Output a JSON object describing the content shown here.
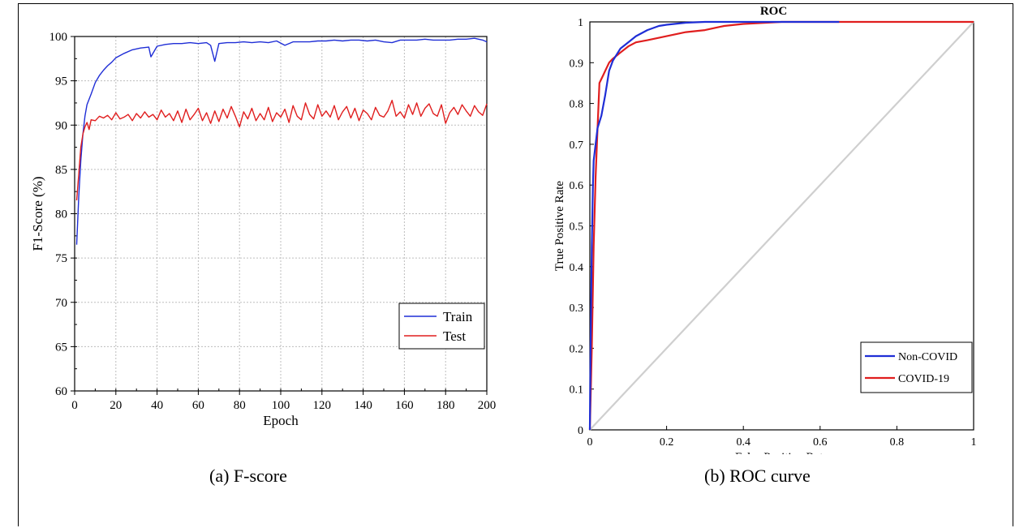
{
  "captions": {
    "a": "(a) F-score",
    "b": "(b) ROC curve"
  },
  "colors": {
    "train": "#1f2ed6",
    "test": "#e01e1e",
    "noncovid": "#1f2ed6",
    "covid": "#e01e1e",
    "diagonal": "#cfcfcf",
    "grid": "#bdbdbd"
  },
  "chart_data": [
    {
      "type": "line",
      "title": "",
      "xlabel": "Epoch",
      "ylabel": "F1-Score (%)",
      "xlim": [
        0,
        200
      ],
      "ylim": [
        60,
        100
      ],
      "xticks": [
        0,
        20,
        40,
        60,
        80,
        100,
        120,
        140,
        160,
        180,
        200
      ],
      "yticks": [
        60,
        65,
        70,
        75,
        80,
        85,
        90,
        95,
        100
      ],
      "grid": true,
      "legend_position": "bottom-right",
      "series": [
        {
          "name": "Train",
          "x": [
            1,
            2,
            3,
            4,
            5,
            6,
            8,
            10,
            12,
            14,
            16,
            18,
            20,
            24,
            28,
            32,
            36,
            37,
            40,
            44,
            48,
            52,
            56,
            60,
            64,
            66,
            68,
            70,
            74,
            78,
            82,
            86,
            90,
            94,
            98,
            102,
            106,
            110,
            114,
            118,
            122,
            126,
            130,
            134,
            138,
            142,
            146,
            150,
            154,
            158,
            162,
            166,
            170,
            174,
            178,
            182,
            186,
            190,
            194,
            198,
            200
          ],
          "y": [
            76.5,
            82.0,
            86.0,
            89.0,
            91.0,
            92.3,
            93.5,
            94.8,
            95.6,
            96.2,
            96.7,
            97.1,
            97.6,
            98.1,
            98.5,
            98.7,
            98.8,
            97.7,
            98.9,
            99.1,
            99.2,
            99.2,
            99.3,
            99.2,
            99.3,
            99.0,
            97.2,
            99.2,
            99.3,
            99.3,
            99.4,
            99.3,
            99.4,
            99.3,
            99.5,
            99.0,
            99.4,
            99.4,
            99.4,
            99.5,
            99.5,
            99.6,
            99.5,
            99.6,
            99.6,
            99.5,
            99.6,
            99.4,
            99.3,
            99.6,
            99.6,
            99.6,
            99.7,
            99.6,
            99.6,
            99.6,
            99.7,
            99.7,
            99.8,
            99.6,
            99.4
          ]
        },
        {
          "name": "Test",
          "x": [
            1,
            2,
            3,
            4,
            5,
            6,
            7,
            8,
            10,
            12,
            14,
            16,
            18,
            20,
            22,
            24,
            26,
            28,
            30,
            32,
            34,
            36,
            38,
            40,
            42,
            44,
            46,
            48,
            50,
            52,
            54,
            56,
            58,
            60,
            62,
            64,
            66,
            68,
            70,
            72,
            74,
            76,
            78,
            80,
            82,
            84,
            86,
            88,
            90,
            92,
            94,
            96,
            98,
            100,
            102,
            104,
            106,
            108,
            110,
            112,
            114,
            116,
            118,
            120,
            122,
            124,
            126,
            128,
            130,
            132,
            134,
            136,
            138,
            140,
            142,
            144,
            146,
            148,
            150,
            152,
            154,
            156,
            158,
            160,
            162,
            164,
            166,
            168,
            170,
            172,
            174,
            176,
            178,
            180,
            182,
            184,
            186,
            188,
            190,
            192,
            194,
            196,
            198,
            200
          ],
          "y": [
            81.5,
            84.5,
            87.5,
            89.0,
            89.8,
            90.3,
            89.5,
            90.6,
            90.5,
            91.0,
            90.8,
            91.1,
            90.6,
            91.4,
            90.7,
            90.9,
            91.2,
            90.5,
            91.3,
            90.8,
            91.5,
            90.9,
            91.2,
            90.6,
            91.7,
            90.9,
            91.3,
            90.5,
            91.6,
            90.3,
            91.8,
            90.6,
            91.2,
            91.9,
            90.5,
            91.4,
            90.2,
            91.6,
            90.4,
            91.8,
            90.8,
            92.1,
            91.0,
            89.8,
            91.5,
            90.7,
            91.9,
            90.5,
            91.3,
            90.6,
            92.0,
            90.4,
            91.4,
            90.9,
            91.8,
            90.3,
            92.2,
            91.0,
            90.6,
            92.5,
            91.2,
            90.7,
            92.3,
            91.0,
            91.6,
            90.9,
            92.2,
            90.6,
            91.5,
            92.1,
            90.8,
            91.9,
            90.5,
            91.7,
            91.3,
            90.6,
            92.0,
            91.1,
            90.9,
            91.6,
            92.8,
            91.0,
            91.5,
            90.8,
            92.3,
            91.2,
            92.5,
            91.0,
            91.9,
            92.4,
            91.3,
            91.0,
            92.3,
            90.2,
            91.4,
            92.0,
            91.2,
            92.3,
            91.6,
            91.0,
            92.2,
            91.5,
            91.1,
            92.4
          ]
        }
      ]
    },
    {
      "type": "line",
      "title": "ROC",
      "xlabel": "False Positive Rate",
      "ylabel": "True Positive Rate",
      "xlim": [
        0,
        1
      ],
      "ylim": [
        0,
        1
      ],
      "xticks": [
        "0",
        "0.2",
        "0.4",
        "0.6",
        "0.8",
        "1"
      ],
      "yticks": [
        "0",
        "0.1",
        "0.2",
        "0.3",
        "0.4",
        "0.5",
        "0.6",
        "0.7",
        "0.8",
        "0.9",
        "1"
      ],
      "grid": false,
      "legend_position": "bottom-right",
      "series": [
        {
          "name": "Non-COVID",
          "x": [
            0,
            0.002,
            0.005,
            0.008,
            0.01,
            0.015,
            0.02,
            0.03,
            0.04,
            0.05,
            0.06,
            0.07,
            0.08,
            0.1,
            0.12,
            0.15,
            0.18,
            0.2,
            0.25,
            0.3,
            0.4,
            0.5,
            0.65
          ],
          "y": [
            0,
            0.2,
            0.45,
            0.6,
            0.66,
            0.7,
            0.74,
            0.77,
            0.82,
            0.88,
            0.905,
            0.92,
            0.935,
            0.95,
            0.965,
            0.98,
            0.99,
            0.993,
            0.998,
            1.0,
            1.0,
            1.0,
            1.0
          ]
        },
        {
          "name": "COVID-19",
          "x": [
            0,
            0.005,
            0.01,
            0.015,
            0.02,
            0.025,
            0.03,
            0.035,
            0.04,
            0.05,
            0.06,
            0.08,
            0.1,
            0.12,
            0.15,
            0.2,
            0.25,
            0.3,
            0.35,
            0.4,
            0.5,
            0.6,
            0.7,
            0.8,
            0.9,
            1.0
          ],
          "y": [
            0,
            0.2,
            0.45,
            0.62,
            0.74,
            0.85,
            0.86,
            0.87,
            0.88,
            0.9,
            0.91,
            0.925,
            0.94,
            0.95,
            0.955,
            0.965,
            0.975,
            0.98,
            0.99,
            0.995,
            1.0,
            1.0,
            1.0,
            1.0,
            1.0,
            1.0
          ]
        },
        {
          "name": "",
          "x": [
            0,
            1
          ],
          "y": [
            0,
            1
          ]
        }
      ]
    }
  ]
}
